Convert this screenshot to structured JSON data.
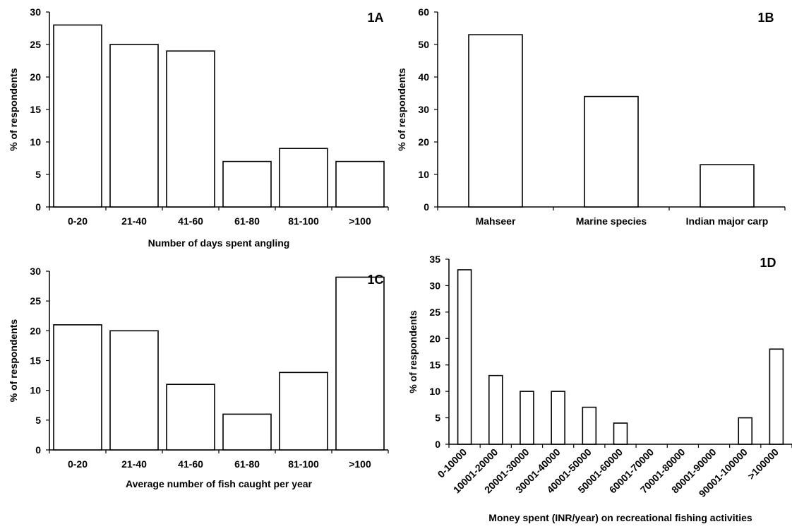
{
  "chart_data": [
    {
      "id": "1A",
      "type": "bar",
      "title": "1A",
      "xlabel": "Number of days spent angling",
      "ylabel": "% of respondents",
      "categories": [
        "0-20",
        "21-40",
        "41-60",
        "61-80",
        "81-100",
        ">100"
      ],
      "values": [
        28,
        25,
        24,
        7,
        9,
        7
      ],
      "ylim": [
        0,
        30
      ],
      "yticks": [
        "0",
        "5",
        "10",
        "15",
        "20",
        "25",
        "30"
      ],
      "grid": false
    },
    {
      "id": "1B",
      "type": "bar",
      "title": "1B",
      "xlabel": "",
      "ylabel": "% of respondents",
      "categories": [
        "Mahseer",
        "Marine species",
        "Indian major carp"
      ],
      "values": [
        53,
        34,
        13
      ],
      "ylim": [
        0,
        60
      ],
      "yticks": [
        "0",
        "10",
        "20",
        "30",
        "40",
        "50",
        "60"
      ],
      "grid": false
    },
    {
      "id": "1C",
      "type": "bar",
      "title": "1C",
      "xlabel": "Average number of fish caught per year",
      "ylabel": "% of respondents",
      "categories": [
        "0-20",
        "21-40",
        "41-60",
        "61-80",
        "81-100",
        ">100"
      ],
      "values": [
        21,
        20,
        11,
        6,
        13,
        29
      ],
      "ylim": [
        0,
        30
      ],
      "yticks": [
        "0",
        "5",
        "10",
        "15",
        "20",
        "25",
        "30"
      ],
      "grid": false
    },
    {
      "id": "1D",
      "type": "bar",
      "title": "1D",
      "xlabel": "Money spent (INR/year) on recreational  fishing  activities",
      "ylabel": "% of respondents",
      "categories": [
        "0-10000",
        "10001-20000",
        "20001-30000",
        "30001-40000",
        "40001-50000",
        "50001-60000",
        "60001-70000",
        "70001-80000",
        "80001-90000",
        "90001-100000",
        ">100000"
      ],
      "values": [
        33,
        13,
        10,
        10,
        7,
        4,
        0,
        0,
        0,
        5,
        18
      ],
      "ylim": [
        0,
        35
      ],
      "yticks": [
        "0",
        "5",
        "10",
        "15",
        "20",
        "25",
        "30",
        "35"
      ],
      "grid": false
    }
  ]
}
